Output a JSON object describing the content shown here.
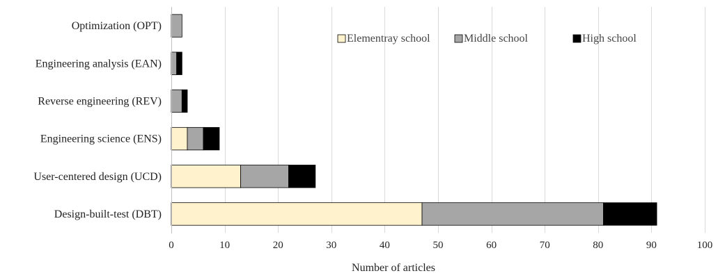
{
  "chart_data": {
    "type": "bar",
    "orientation": "horizontal",
    "stacked": true,
    "title": "",
    "xlabel": "Number of articles",
    "ylabel": "",
    "xlim": [
      0,
      100
    ],
    "xticks": [
      0,
      10,
      20,
      30,
      40,
      50,
      60,
      70,
      80,
      90,
      100
    ],
    "grid": true,
    "legend_position": "top-right",
    "categories": [
      "Optimization (OPT)",
      "Engineering  analysis (EAN)",
      "Reverse engineering (REV)",
      "Engineering science (ENS)",
      "User-centered design (UCD)",
      "Design-built-test (DBT)"
    ],
    "series": [
      {
        "name": "Elementray school",
        "color": "#fff2cc",
        "values": [
          0,
          0,
          0,
          3,
          13,
          47
        ]
      },
      {
        "name": "Middle  school",
        "color": "#a6a6a6",
        "values": [
          2,
          1,
          2,
          3,
          9,
          34
        ]
      },
      {
        "name": "High  school",
        "color": "#000000",
        "values": [
          0,
          1,
          1,
          3,
          5,
          10
        ]
      }
    ]
  }
}
